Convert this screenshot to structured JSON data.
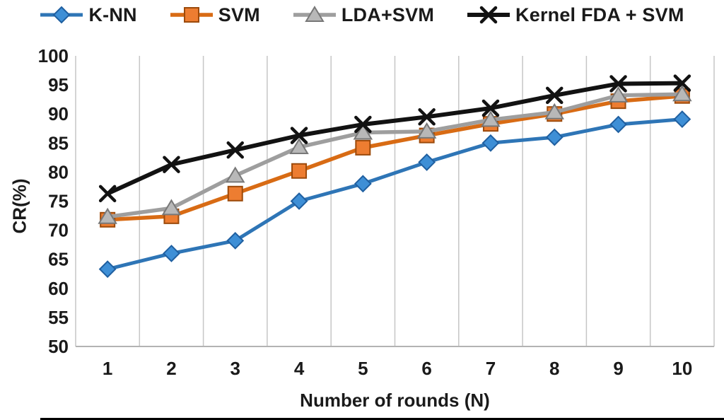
{
  "chart_data": {
    "type": "line",
    "title": "",
    "xlabel": "Number of rounds (N)",
    "ylabel": "CR(%)",
    "x": [
      1,
      2,
      3,
      4,
      5,
      6,
      7,
      8,
      9,
      10
    ],
    "xticks": [
      "1",
      "2",
      "3",
      "4",
      "5",
      "6",
      "7",
      "8",
      "9",
      "10"
    ],
    "yticks": [
      100,
      95,
      90,
      85,
      80,
      75,
      70,
      65,
      60,
      55,
      50
    ],
    "ylim": [
      50,
      100
    ],
    "ytick_step": 5,
    "grid": "vertical-only",
    "gridline_color": "#c6c6c6",
    "axis_line_color": "#b3b3b3",
    "legend_position": "top",
    "series": [
      {
        "name": "K-NN",
        "marker": "diamond",
        "line_color": "#2e75b6",
        "marker_fill": "#3e8fd6",
        "marker_stroke": "#1f5fa0",
        "line_width": 5,
        "values": [
          63.3,
          66.0,
          68.2,
          75.0,
          78.0,
          81.7,
          85.0,
          86.0,
          88.2,
          89.1
        ]
      },
      {
        "name": "SVM",
        "marker": "square",
        "line_color": "#d86b14",
        "marker_fill": "#ed7d31",
        "marker_stroke": "#9c4a0b",
        "line_width": 5.5,
        "values": [
          71.8,
          72.4,
          76.3,
          80.2,
          84.2,
          86.3,
          88.3,
          90.0,
          92.2,
          93.1
        ]
      },
      {
        "name": "LDA+SVM",
        "marker": "triangle",
        "line_color": "#9e9e9e",
        "marker_fill": "#b8b8b8",
        "marker_stroke": "#787878",
        "line_width": 5.5,
        "values": [
          72.3,
          73.8,
          79.4,
          84.3,
          86.8,
          87.0,
          89.0,
          90.3,
          93.2,
          93.4
        ]
      },
      {
        "name": "Kernel FDA + SVM",
        "marker": "x",
        "line_color": "#121212",
        "marker_fill": "#121212",
        "marker_stroke": "#121212",
        "line_width": 6,
        "values": [
          76.3,
          81.3,
          83.8,
          86.3,
          88.2,
          89.5,
          91.0,
          93.2,
          95.2,
          95.3
        ]
      }
    ]
  }
}
